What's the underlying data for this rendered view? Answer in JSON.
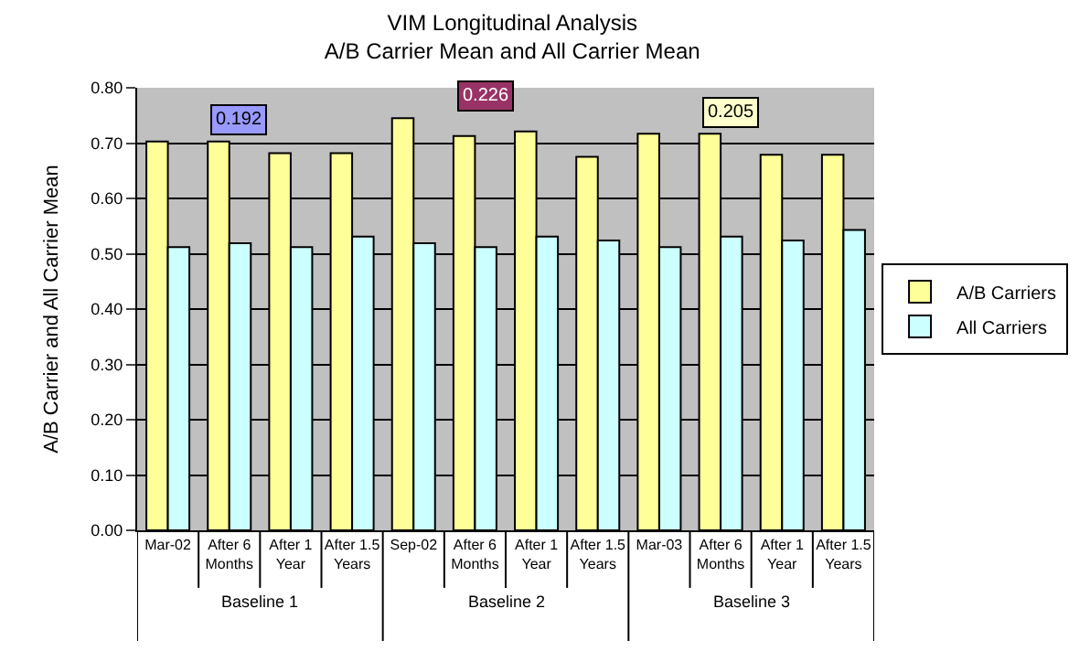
{
  "chart_data": {
    "type": "bar",
    "title": "VIM Longitudinal Analysis\nA/B Carrier Mean and All Carrier Mean",
    "ylabel": "A/B Carrier and All Carrier Mean",
    "categories": [
      "Mar-02",
      "After 6 Months",
      "After 1 Year",
      "After 1.5 Years",
      "Sep-02",
      "After 6 Months",
      "After 1 Year",
      "After 1.5 Years",
      "Mar-03",
      "After 6 Months",
      "After 1 Year",
      "After 1.5 Years"
    ],
    "series": [
      {
        "name": "A/B Carriers",
        "color": "#ffff99",
        "values": [
          0.703,
          0.703,
          0.682,
          0.682,
          0.745,
          0.713,
          0.721,
          0.675,
          0.717,
          0.717,
          0.679,
          0.679
        ]
      },
      {
        "name": "All Carriers",
        "color": "#ccffff",
        "values": [
          0.512,
          0.519,
          0.512,
          0.531,
          0.519,
          0.512,
          0.531,
          0.524,
          0.512,
          0.531,
          0.524,
          0.543
        ]
      }
    ],
    "annotations": [
      {
        "text": "0.192",
        "x": "Mar-02",
        "y": 0.703
      },
      {
        "text": "0.226",
        "x": "Sep-02",
        "y": 0.745
      },
      {
        "text": "0.205",
        "x": "Mar-03",
        "y": 0.717
      },
      "Baseline 1",
      "Baseline 2",
      "Baseline 3"
    ],
    "ylim": [
      0,
      0.8
    ],
    "yticks": [
      {
        "value": 0,
        "label": "0.00"
      },
      {
        "value": 0.1,
        "label": "0.10"
      },
      {
        "value": 0.2,
        "label": "0.20"
      },
      {
        "value": 0.3,
        "label": "0.30"
      },
      {
        "value": 0.4,
        "label": "0.40"
      },
      {
        "value": 0.5,
        "label": "0.50"
      },
      {
        "value": 0.6,
        "label": "0.60"
      },
      {
        "value": 0.7,
        "label": "0.70"
      },
      {
        "value": 0.8,
        "label": "0.80"
      }
    ],
    "grid": "y",
    "legend": "right"
  }
}
